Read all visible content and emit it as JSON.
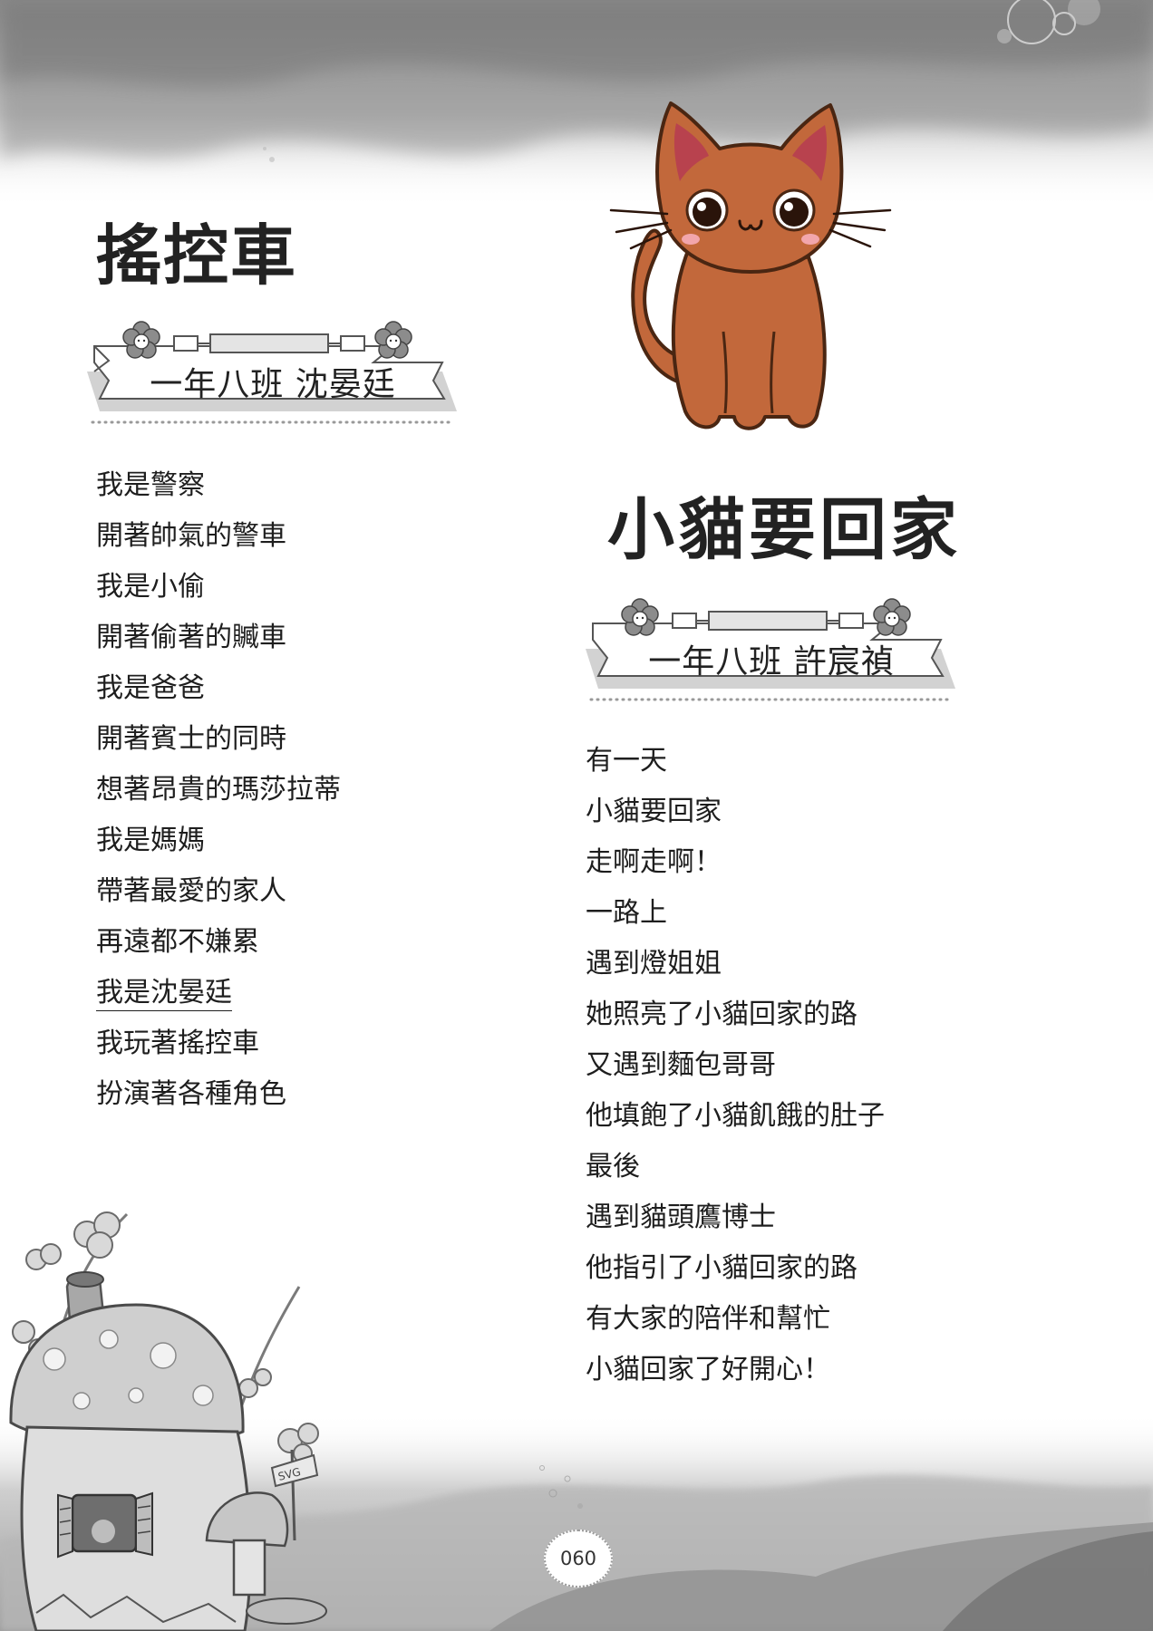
{
  "poems": [
    {
      "title": "搖控車",
      "author": "一年八班  沈晏廷",
      "lines": [
        "我是警察",
        "開著帥氣的警車",
        "我是小偷",
        "開著偷著的贓車",
        "我是爸爸",
        "開著賓士的同時",
        "想著昂貴的瑪莎拉蒂",
        "我是媽媽",
        "帶著最愛的家人",
        "再遠都不嫌累",
        "我是沈晏廷",
        "我玩著搖控車",
        "扮演著各種角色"
      ]
    },
    {
      "title": "小貓要回家",
      "author": "一年八班  許宸禎",
      "lines": [
        "有一天",
        "小貓要回家",
        "走啊走啊！",
        "一路上",
        "遇到燈姐姐",
        "她照亮了小貓回家的路",
        "又遇到麵包哥哥",
        "他填飽了小貓飢餓的肚子",
        "最後",
        "遇到貓頭鷹博士",
        "他指引了小貓回家的路",
        "有大家的陪伴和幫忙",
        "小貓回家了好開心！"
      ]
    }
  ],
  "page_number": "060",
  "signpost_text": "SVG",
  "colors": {
    "cat_fur": "#c2683b",
    "cat_outline": "#4a2612",
    "banner_flower": "#8c8c8c",
    "background_wash": "#9a9a9a"
  },
  "icons": {
    "cat": "cat-illustration",
    "banner_flower": "flower-icon",
    "mushroom_house": "mushroom-house-illustration"
  }
}
